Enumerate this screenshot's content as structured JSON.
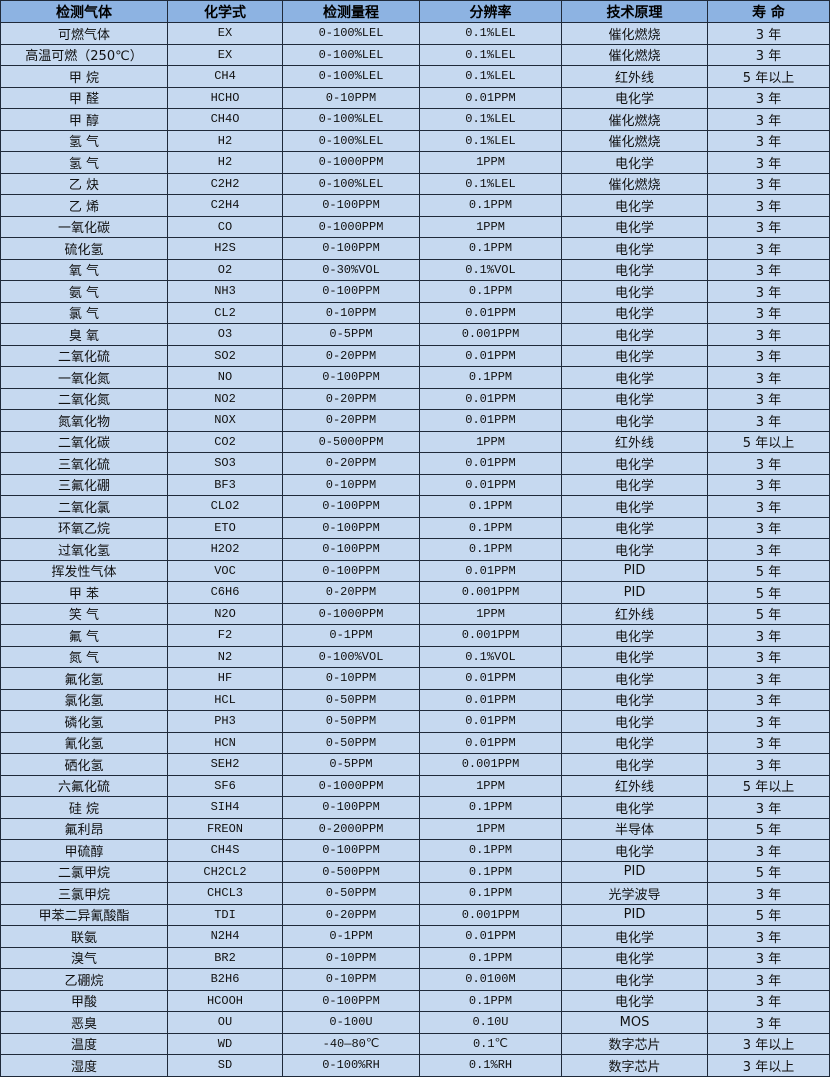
{
  "headers": [
    "检测气体",
    "化学式",
    "检测量程",
    "分辨率",
    "技术原理",
    "寿 命"
  ],
  "rows": [
    [
      "可燃气体",
      "EX",
      "0-100%LEL",
      "0.1%LEL",
      "催化燃烧",
      "3 年"
    ],
    [
      "高温可燃（250℃）",
      "EX",
      "0-100%LEL",
      "0.1%LEL",
      "催化燃烧",
      "3 年"
    ],
    [
      "甲 烷",
      "CH4",
      "0-100%LEL",
      "0.1%LEL",
      "红外线",
      "5 年以上"
    ],
    [
      "甲 醛",
      "HCHO",
      "0-10PPM",
      "0.01PPM",
      "电化学",
      "3 年"
    ],
    [
      "甲 醇",
      "CH4O",
      "0-100%LEL",
      "0.1%LEL",
      "催化燃烧",
      "3 年"
    ],
    [
      "氢 气",
      "H2",
      "0-100%LEL",
      "0.1%LEL",
      "催化燃烧",
      "3 年"
    ],
    [
      "氢 气",
      "H2",
      "0-1000PPM",
      "1PPM",
      "电化学",
      "3 年"
    ],
    [
      "乙 炔",
      "C2H2",
      "0-100%LEL",
      "0.1%LEL",
      "催化燃烧",
      "3 年"
    ],
    [
      "乙 烯",
      "C2H4",
      "0-100PPM",
      "0.1PPM",
      "电化学",
      "3 年"
    ],
    [
      "一氧化碳",
      "CO",
      "0-1000PPM",
      "1PPM",
      "电化学",
      "3 年"
    ],
    [
      "硫化氢",
      "H2S",
      "0-100PPM",
      "0.1PPM",
      "电化学",
      "3 年"
    ],
    [
      "氧 气",
      "O2",
      "0-30%VOL",
      "0.1%VOL",
      "电化学",
      "3 年"
    ],
    [
      "氨 气",
      "NH3",
      "0-100PPM",
      "0.1PPM",
      "电化学",
      "3 年"
    ],
    [
      "氯 气",
      "CL2",
      "0-10PPM",
      "0.01PPM",
      "电化学",
      "3 年"
    ],
    [
      "臭 氧",
      "O3",
      "0-5PPM",
      "0.001PPM",
      "电化学",
      "3 年"
    ],
    [
      "二氧化硫",
      "SO2",
      "0-20PPM",
      "0.01PPM",
      "电化学",
      "3 年"
    ],
    [
      "一氧化氮",
      "NO",
      "0-100PPM",
      "0.1PPM",
      "电化学",
      "3 年"
    ],
    [
      "二氧化氮",
      "NO2",
      "0-20PPM",
      "0.01PPM",
      "电化学",
      "3 年"
    ],
    [
      "氮氧化物",
      "NOX",
      "0-20PPM",
      "0.01PPM",
      "电化学",
      "3 年"
    ],
    [
      "二氧化碳",
      "CO2",
      "0-5000PPM",
      "1PPM",
      "红外线",
      "5 年以上"
    ],
    [
      "三氧化硫",
      "SO3",
      "0-20PPM",
      "0.01PPM",
      "电化学",
      "3 年"
    ],
    [
      "三氟化硼",
      "BF3",
      "0-10PPM",
      "0.01PPM",
      "电化学",
      "3 年"
    ],
    [
      "二氧化氯",
      "CLO2",
      "0-100PPM",
      "0.1PPM",
      "电化学",
      "3 年"
    ],
    [
      "环氧乙烷",
      "ETO",
      "0-100PPM",
      "0.1PPM",
      "电化学",
      "3 年"
    ],
    [
      "过氧化氢",
      "H2O2",
      "0-100PPM",
      "0.1PPM",
      "电化学",
      "3 年"
    ],
    [
      "挥发性气体",
      "VOC",
      "0-100PPM",
      "0.01PPM",
      "PID",
      "5 年"
    ],
    [
      "甲 苯",
      "C6H6",
      "0-20PPM",
      "0.001PPM",
      "PID",
      "5 年"
    ],
    [
      "笑 气",
      "N2O",
      "0-1000PPM",
      "1PPM",
      "红外线",
      "5 年"
    ],
    [
      "氟 气",
      "F2",
      "0-1PPM",
      "0.001PPM",
      "电化学",
      "3 年"
    ],
    [
      "氮 气",
      "N2",
      "0-100%VOL",
      "0.1%VOL",
      "电化学",
      "3 年"
    ],
    [
      "氟化氢",
      "HF",
      "0-10PPM",
      "0.01PPM",
      "电化学",
      "3 年"
    ],
    [
      "氯化氢",
      "HCL",
      "0-50PPM",
      "0.01PPM",
      "电化学",
      "3 年"
    ],
    [
      "磷化氢",
      "PH3",
      "0-50PPM",
      "0.01PPM",
      "电化学",
      "3 年"
    ],
    [
      "氰化氢",
      "HCN",
      "0-50PPM",
      "0.01PPM",
      "电化学",
      "3 年"
    ],
    [
      "硒化氢",
      "SEH2",
      "0-5PPM",
      "0.001PPM",
      "电化学",
      "3 年"
    ],
    [
      "六氟化硫",
      "SF6",
      "0-1000PPM",
      "1PPM",
      "红外线",
      "5 年以上"
    ],
    [
      "硅 烷",
      "SIH4",
      "0-100PPM",
      "0.1PPM",
      "电化学",
      "3 年"
    ],
    [
      "氟利昂",
      "FREON",
      "0-2000PPM",
      "1PPM",
      "半导体",
      "5 年"
    ],
    [
      "甲硫醇",
      "CH4S",
      "0-100PPM",
      "0.1PPM",
      "电化学",
      "3 年"
    ],
    [
      "二氯甲烷",
      "CH2CL2",
      "0-500PPM",
      "0.1PPM",
      "PID",
      "5 年"
    ],
    [
      "三氯甲烷",
      "CHCL3",
      "0-50PPM",
      "0.1PPM",
      "光学波导",
      "3 年"
    ],
    [
      "甲苯二异氰酸酯",
      "TDI",
      "0-20PPM",
      "0.001PPM",
      "PID",
      "5 年"
    ],
    [
      "联氨",
      "N2H4",
      "0-1PPM",
      "0.01PPM",
      "电化学",
      "3 年"
    ],
    [
      "溴气",
      "BR2",
      "0-10PPM",
      "0.1PPM",
      "电化学",
      "3 年"
    ],
    [
      "乙硼烷",
      "B2H6",
      "0-10PPM",
      "0.0100M",
      "电化学",
      "3 年"
    ],
    [
      "甲酸",
      "HCOOH",
      "0-100PPM",
      "0.1PPM",
      "电化学",
      "3 年"
    ],
    [
      "恶臭",
      "OU",
      "0-100U",
      "0.10U",
      "MOS",
      "3 年"
    ],
    [
      "温度",
      "WD",
      "-40—80℃",
      "0.1℃",
      "数字芯片",
      "3 年以上"
    ],
    [
      "湿度",
      "SD",
      "0-100%RH",
      "0.1%RH",
      "数字芯片",
      "3 年以上"
    ]
  ],
  "colors": {
    "header_bg": "#8db3e2",
    "cell_bg": "#c6d9f0",
    "border": "#1f2a3a"
  }
}
